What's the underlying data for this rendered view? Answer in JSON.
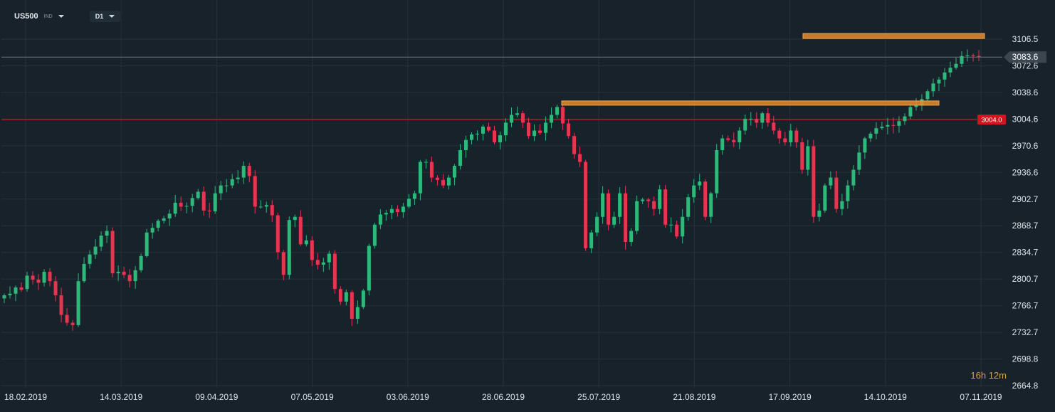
{
  "toolbar": {
    "symbol": "US500",
    "symbol_type": "IND",
    "timeframe": "D1"
  },
  "countdown": {
    "hours": "16",
    "hours_unit": "h",
    "minutes": "12",
    "minutes_unit": "m"
  },
  "price_badges": {
    "current": "3083.6",
    "level": "3004.0"
  },
  "colors": {
    "background": "#18222b",
    "grid": "#26313b",
    "up": "#2eb87a",
    "down": "#e5364e",
    "level_line": "#c8171f",
    "highlight": "#e88a2e",
    "axis_text": "#dfe5ea",
    "current_line": "#6b7782"
  },
  "chart_data": {
    "type": "candlestick",
    "y_ticks": [
      "3106.5",
      "3072.6",
      "3038.6",
      "3004.6",
      "2970.6",
      "2936.6",
      "2902.7",
      "2868.7",
      "2834.7",
      "2800.7",
      "2766.7",
      "2732.7",
      "2698.8",
      "2664.8"
    ],
    "x_ticks": [
      "18.02.2019",
      "14.03.2019",
      "09.04.2019",
      "07.05.2019",
      "03.06.2019",
      "28.06.2019",
      "25.07.2019",
      "21.08.2019",
      "17.09.2019",
      "14.10.2019",
      "07.11.2019"
    ],
    "ylim": [
      2664.8,
      3106.5
    ],
    "current_price": 3083.6,
    "horizontal_levels": [
      {
        "price": 3004.0,
        "label": "3004.0"
      }
    ],
    "highlight_zones": [
      {
        "x_start": "07.11.2019",
        "x_end": "07.11.2019",
        "price": 3110.5,
        "note": ""
      },
      {
        "x_start": "25.07.2019",
        "x_end": "07.11.2019",
        "price": 3025.0,
        "note": ""
      }
    ],
    "closes": [
      2780,
      2782,
      2790,
      2787,
      2805,
      2800,
      2796,
      2810,
      2798,
      2780,
      2755,
      2745,
      2742,
      2798,
      2820,
      2832,
      2842,
      2856,
      2862,
      2808,
      2810,
      2806,
      2798,
      2812,
      2830,
      2860,
      2866,
      2875,
      2878,
      2884,
      2898,
      2893,
      2894,
      2904,
      2912,
      2888,
      2887,
      2910,
      2920,
      2920,
      2928,
      2930,
      2945,
      2932,
      2893,
      2893,
      2895,
      2882,
      2835,
      2806,
      2876,
      2880,
      2845,
      2850,
      2825,
      2819,
      2822,
      2833,
      2788,
      2772,
      2784,
      2750,
      2765,
      2786,
      2843,
      2870,
      2883,
      2885,
      2890,
      2886,
      2893,
      2903,
      2910,
      2950,
      2950,
      2930,
      2927,
      2920,
      2930,
      2945,
      2965,
      2978,
      2985,
      2986,
      2995,
      2990,
      2975,
      2984,
      3000,
      3010,
      3012,
      3000,
      2983,
      2990,
      2987,
      3000,
      3010,
      3020,
      2999,
      2983,
      2960,
      2950,
      2840,
      2860,
      2880,
      2910,
      2870,
      2880,
      2910,
      2848,
      2862,
      2900,
      2902,
      2900,
      2890,
      2915,
      2870,
      2870,
      2855,
      2880,
      2905,
      2920,
      2925,
      2880,
      2910,
      2965,
      2980,
      2978,
      2975,
      2990,
      3005,
      3005,
      3000,
      3012,
      3000,
      2990,
      2980,
      2975,
      2990,
      2975,
      2940,
      2970,
      2880,
      2888,
      2920,
      2930,
      2890,
      2900,
      2920,
      2940,
      2962,
      2980,
      2986,
      2993,
      2995,
      2997,
      2996,
      3002,
      3008,
      3020,
      3022,
      3030,
      3040,
      3050,
      3055,
      3064,
      3070,
      3075,
      3085,
      3086,
      3085,
      3083.6
    ],
    "opens": [
      2776,
      2780,
      2782,
      2790,
      2788,
      2805,
      2800,
      2796,
      2810,
      2798,
      2780,
      2755,
      2745,
      2742,
      2798,
      2820,
      2832,
      2842,
      2856,
      2862,
      2808,
      2810,
      2806,
      2798,
      2812,
      2830,
      2860,
      2866,
      2875,
      2878,
      2884,
      2898,
      2893,
      2894,
      2904,
      2912,
      2888,
      2887,
      2910,
      2920,
      2920,
      2928,
      2930,
      2945,
      2932,
      2893,
      2893,
      2895,
      2882,
      2835,
      2806,
      2876,
      2880,
      2845,
      2850,
      2825,
      2819,
      2822,
      2833,
      2788,
      2772,
      2784,
      2750,
      2765,
      2786,
      2843,
      2870,
      2883,
      2885,
      2890,
      2886,
      2893,
      2903,
      2910,
      2950,
      2950,
      2930,
      2927,
      2920,
      2930,
      2945,
      2965,
      2978,
      2985,
      2986,
      2995,
      2990,
      2975,
      2984,
      3000,
      3010,
      3012,
      3000,
      2983,
      2990,
      2987,
      3000,
      3010,
      3020,
      2999,
      2983,
      2960,
      2950,
      2840,
      2860,
      2880,
      2910,
      2870,
      2880,
      2910,
      2848,
      2862,
      2900,
      2902,
      2900,
      2890,
      2915,
      2870,
      2870,
      2855,
      2880,
      2905,
      2920,
      2925,
      2880,
      2910,
      2965,
      2980,
      2978,
      2975,
      2990,
      3005,
      3005,
      3000,
      3012,
      3000,
      2990,
      2980,
      2975,
      2990,
      2975,
      2940,
      2970,
      2880,
      2888,
      2920,
      2930,
      2890,
      2900,
      2920,
      2940,
      2962,
      2980,
      2986,
      2993,
      2995,
      2997,
      2996,
      3002,
      3008,
      3020,
      3022,
      3030,
      3040,
      3050,
      3055,
      3064,
      3070,
      3075,
      3085,
      3086,
      3085
    ]
  }
}
